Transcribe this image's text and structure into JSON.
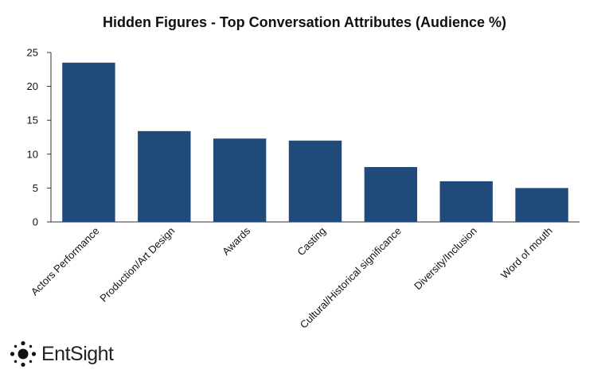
{
  "chart_data": {
    "type": "bar",
    "title": "Hidden Figures - Top Conversation Attributes (Audience %)",
    "xlabel": "",
    "ylabel": "",
    "categories": [
      "Actors Performance",
      "Production/Art Design",
      "Awards",
      "Casting",
      "Cultural/Historical significance",
      "Diversity/Inclusion",
      "Word of mouth"
    ],
    "values": [
      23.5,
      13.4,
      12.3,
      12.0,
      8.1,
      6.0,
      5.0
    ],
    "ylim": [
      0,
      25
    ],
    "yticks": [
      0,
      5,
      10,
      15,
      20,
      25
    ],
    "grid": false,
    "legend": "none",
    "bar_color": "#1f4a7a"
  },
  "brand": {
    "name": "EntSight",
    "icon": "dotted-circle-logo-icon"
  }
}
